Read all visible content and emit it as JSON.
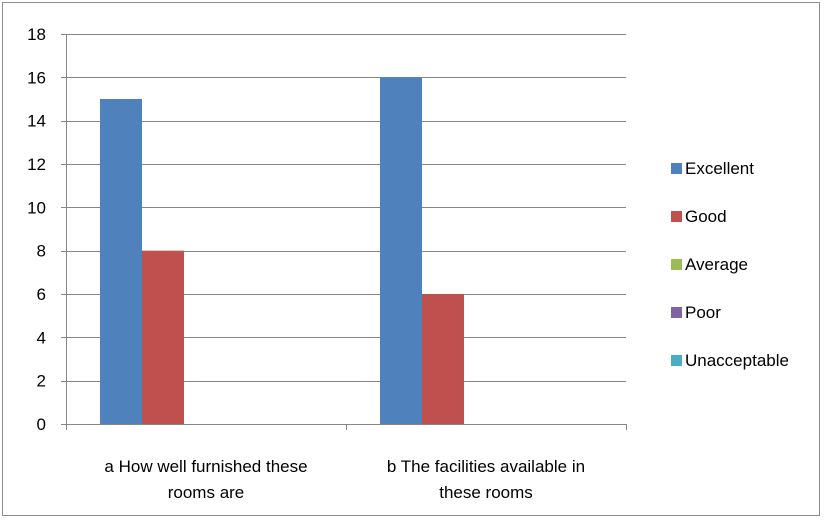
{
  "chart_data": {
    "type": "bar",
    "title": "",
    "xlabel": "",
    "ylabel": "",
    "ylim": [
      0,
      18
    ],
    "yticks": [
      0,
      2,
      4,
      6,
      8,
      10,
      12,
      14,
      16,
      18
    ],
    "grid": true,
    "legend_position": "right",
    "categories": [
      [
        "a How well furnished these",
        "rooms are"
      ],
      [
        "b The facilities available in",
        "these rooms"
      ]
    ],
    "series": [
      {
        "name": "Excellent",
        "color": "#4F81BD",
        "values": [
          15,
          16
        ]
      },
      {
        "name": "Good",
        "color": "#C0504D",
        "values": [
          8,
          6
        ]
      },
      {
        "name": "Average",
        "color": "#9BBB59",
        "values": [
          0,
          0
        ]
      },
      {
        "name": "Poor",
        "color": "#8064A2",
        "values": [
          0,
          0
        ]
      },
      {
        "name": "Unacceptable",
        "color": "#4BACC6",
        "values": [
          0,
          0
        ]
      }
    ]
  }
}
